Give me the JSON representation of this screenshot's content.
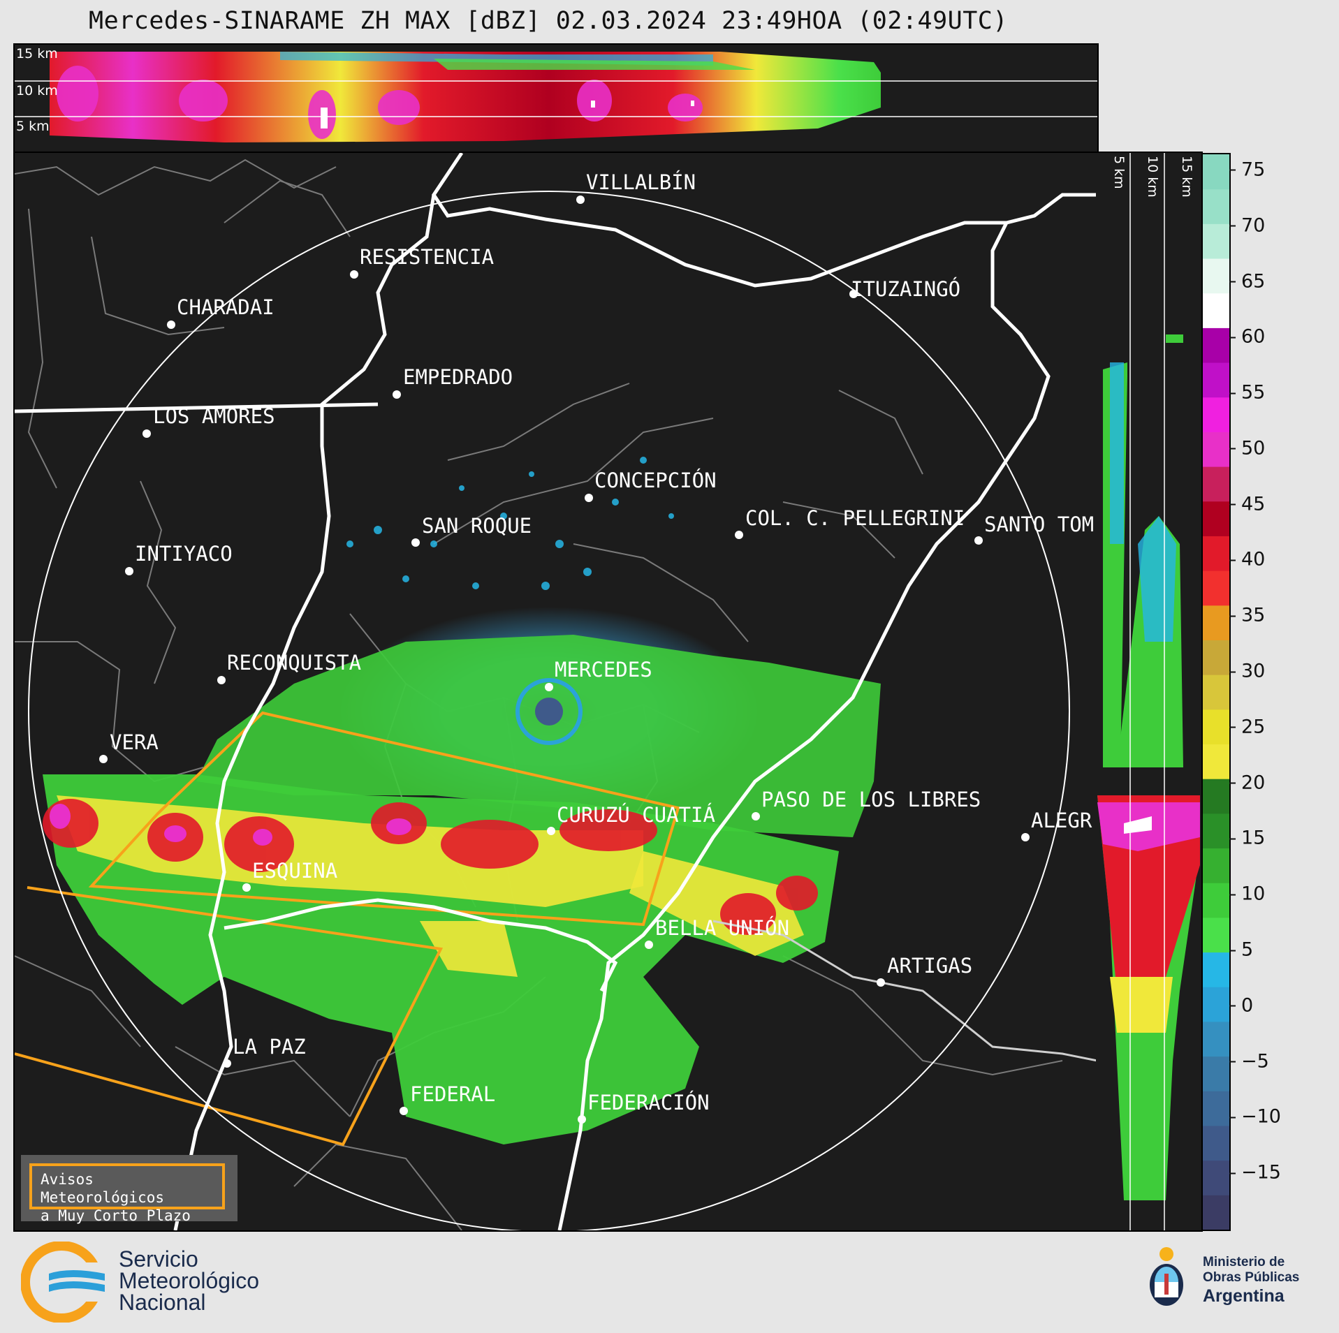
{
  "title": "Mercedes-SINARAME ZH MAX [dBZ] 02.03.2024 23:49HOA (02:49UTC)",
  "top_profile": {
    "altitudes": [
      "15 km",
      "10 km",
      "5 km"
    ]
  },
  "side_profile": {
    "altitudes": [
      "5 km",
      "10 km",
      "15 km"
    ]
  },
  "colorbar": {
    "unit": "dBZ",
    "ticks": [
      "75",
      "70",
      "65",
      "60",
      "55",
      "50",
      "45",
      "40",
      "35",
      "30",
      "25",
      "20",
      "15",
      "10",
      "5",
      "0",
      "−5",
      "−10",
      "−15"
    ],
    "range": [
      -20,
      76.5
    ],
    "colors": [
      "#3b3c64",
      "#3f4a78",
      "#3f5a8a",
      "#3d6b9a",
      "#3a7ba8",
      "#3590c0",
      "#2ba3d8",
      "#26b7e6",
      "#4ae04a",
      "#3ecc3a",
      "#36b030",
      "#2a9028",
      "#257a22",
      "#f0e83a",
      "#e8e02a",
      "#d8c63a",
      "#c8a838",
      "#e89a20",
      "#f2302e",
      "#e21a2a",
      "#b00020",
      "#c8205c",
      "#e830c8",
      "#f020e0",
      "#c010c8",
      "#a800a8",
      "#ffffff",
      "#e8f8f0",
      "#b8ecd8",
      "#98e0c8",
      "#88d8c0"
    ]
  },
  "cities": [
    {
      "name": "VILLALBÍN"
    },
    {
      "name": "RESISTENCIA"
    },
    {
      "name": "CHARADAI"
    },
    {
      "name": "ITUZAINGÓ"
    },
    {
      "name": "EMPEDRADO"
    },
    {
      "name": "LOS AMORES"
    },
    {
      "name": "CONCEPCIÓN"
    },
    {
      "name": "COL. C. PELLEGRINI"
    },
    {
      "name": "SANTO TOM"
    },
    {
      "name": "SAN ROQUE"
    },
    {
      "name": "INTIYACO"
    },
    {
      "name": "MERCEDES"
    },
    {
      "name": "RECONQUISTA"
    },
    {
      "name": "VERA"
    },
    {
      "name": "PASO DE LOS LIBRES"
    },
    {
      "name": "CURUZÚ CUATIÁ"
    },
    {
      "name": "ALEGR"
    },
    {
      "name": "ESQUINA"
    },
    {
      "name": "BELLA UNIÓN"
    },
    {
      "name": "ARTIGAS"
    },
    {
      "name": "LA PAZ"
    },
    {
      "name": "FEDERAL"
    },
    {
      "name": "FEDERACIÓN"
    }
  ],
  "warning_legend": {
    "line1": "Avisos Meteorológicos",
    "line2": "a Muy Corto Plazo",
    "color": "#f7a21b"
  },
  "footer": {
    "smn_line1": "Servicio",
    "smn_line2": "Meteorológico",
    "smn_line3": "Nacional",
    "ministry_line1": "Ministerio de",
    "ministry_line2": "Obras Públicas",
    "ministry_line3": "Argentina"
  }
}
